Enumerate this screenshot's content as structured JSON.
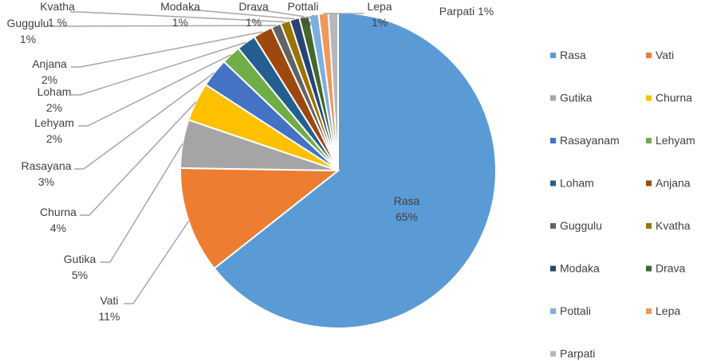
{
  "chart_data": {
    "type": "pie",
    "title": "",
    "legend_position": "right",
    "slices": [
      {
        "name": "Rasa",
        "value": 65,
        "label": "65%",
        "color": "#5B9BD5"
      },
      {
        "name": "Vati",
        "value": 11,
        "label": "11%",
        "color": "#ED7D31"
      },
      {
        "name": "Gutika",
        "value": 5,
        "label": "5%",
        "color": "#A5A5A5"
      },
      {
        "name": "Churna",
        "value": 4,
        "label": "4%",
        "color": "#FFC000"
      },
      {
        "name": "Rasayanam",
        "value": 3,
        "label": "3%",
        "color": "#4472C4"
      },
      {
        "name": "Lehyam",
        "value": 2,
        "label": "2%",
        "color": "#70AD47"
      },
      {
        "name": "Loham",
        "value": 2,
        "label": "2%",
        "color": "#255E91"
      },
      {
        "name": "Anjana",
        "value": 2,
        "label": "2%",
        "color": "#9E480E"
      },
      {
        "name": "Guggulu",
        "value": 1,
        "label": "1%",
        "color": "#636363"
      },
      {
        "name": "Kvatha",
        "value": 1,
        "label": "1 %",
        "color": "#997300"
      },
      {
        "name": "Modaka",
        "value": 1,
        "label": "1%",
        "color": "#264478"
      },
      {
        "name": "Drava",
        "value": 1,
        "label": "1%",
        "color": "#43682B"
      },
      {
        "name": "Pottali",
        "value": 1,
        "label": "1%",
        "color": "#7CAFDD"
      },
      {
        "name": "Lepa",
        "value": 1,
        "label": "1%",
        "color": "#F1975A"
      },
      {
        "name": "Parpati",
        "value": 1,
        "label": "1%",
        "color": "#B7B7B7"
      }
    ],
    "data_labels": {
      "Rasa": {
        "name_text": "Rasa",
        "value_text": "65%"
      },
      "Vati": {
        "name_text": "Vati",
        "value_text": "11%"
      },
      "Gutika": {
        "name_text": "Gutika",
        "value_text": "5%"
      },
      "Churna": {
        "name_text": "Churna",
        "value_text": "4%"
      },
      "Rasayanam": {
        "name_text": "Rasayana",
        "value_text": "3%"
      },
      "Lehyam": {
        "name_text": "Lehyam",
        "value_text": "2%"
      },
      "Loham": {
        "name_text": "Loham",
        "value_text": "2%"
      },
      "Anjana": {
        "name_text": "Anjana",
        "value_text": "2%"
      },
      "Guggulu": {
        "name_text": "Guggulu",
        "value_text": "1%"
      },
      "Kvatha": {
        "name_text": "Kvatha",
        "value_text": "1 %"
      },
      "Modaka": {
        "name_text": "Modaka",
        "value_text": "1%"
      },
      "Drava": {
        "name_text": "Drava",
        "value_text": "1%"
      },
      "Pottali": {
        "name_text": "Pottali",
        "value_text": "1%"
      },
      "Lepa": {
        "name_text": "Lepa",
        "value_text": "1%"
      },
      "Parpati": {
        "name_text": "Parpati 1%",
        "value_text": ""
      }
    }
  }
}
